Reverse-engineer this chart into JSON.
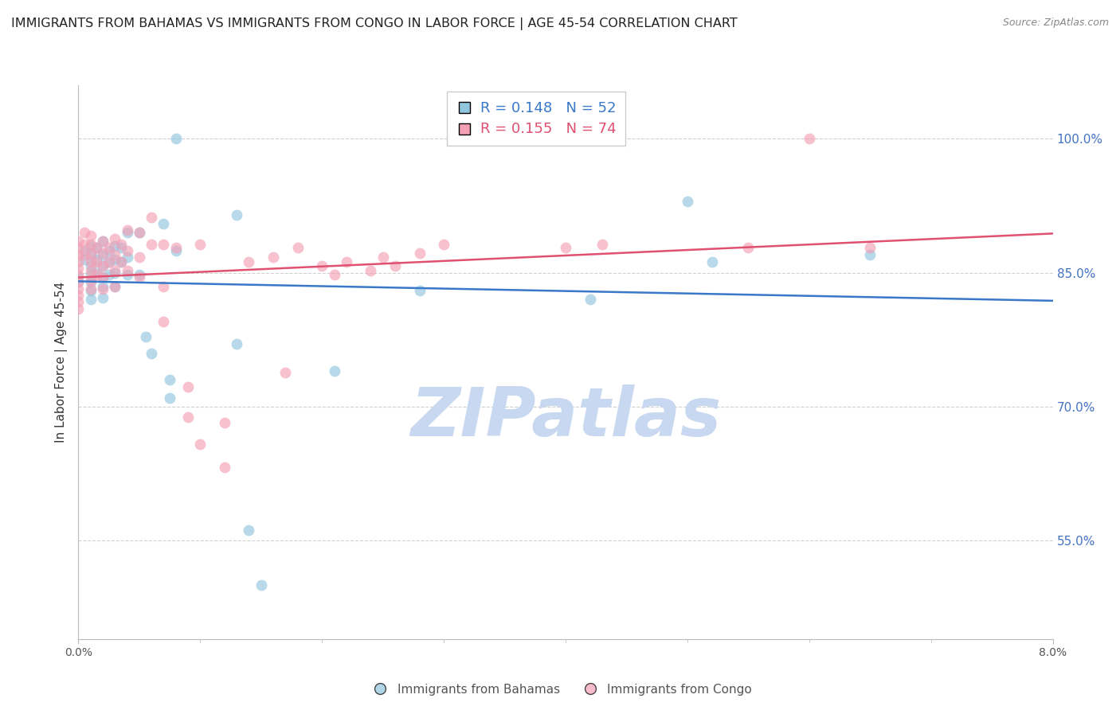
{
  "title": "IMMIGRANTS FROM BAHAMAS VS IMMIGRANTS FROM CONGO IN LABOR FORCE | AGE 45-54 CORRELATION CHART",
  "source": "Source: ZipAtlas.com",
  "ylabel": "In Labor Force | Age 45-54",
  "yticks": [
    0.55,
    0.7,
    0.85,
    1.0
  ],
  "ytick_labels": [
    "55.0%",
    "70.0%",
    "85.0%",
    "100.0%"
  ],
  "xlim": [
    0.0,
    0.08
  ],
  "ylim": [
    0.44,
    1.06
  ],
  "bahamas_color": "#92c5de",
  "congo_color": "#f4a0b5",
  "trend_bahamas_color": "#3a78c9",
  "trend_congo_color": "#e05070",
  "bahamas_scatter": [
    [
      0.0,
      0.845
    ],
    [
      0.0,
      0.84
    ],
    [
      0.0005,
      0.875
    ],
    [
      0.0005,
      0.865
    ],
    [
      0.001,
      0.88
    ],
    [
      0.001,
      0.87
    ],
    [
      0.001,
      0.858
    ],
    [
      0.001,
      0.848
    ],
    [
      0.001,
      0.84
    ],
    [
      0.001,
      0.83
    ],
    [
      0.001,
      0.82
    ],
    [
      0.0015,
      0.878
    ],
    [
      0.0015,
      0.865
    ],
    [
      0.0015,
      0.85
    ],
    [
      0.002,
      0.885
    ],
    [
      0.002,
      0.87
    ],
    [
      0.002,
      0.858
    ],
    [
      0.002,
      0.845
    ],
    [
      0.002,
      0.835
    ],
    [
      0.002,
      0.822
    ],
    [
      0.0025,
      0.875
    ],
    [
      0.0025,
      0.862
    ],
    [
      0.0025,
      0.848
    ],
    [
      0.003,
      0.88
    ],
    [
      0.003,
      0.865
    ],
    [
      0.003,
      0.85
    ],
    [
      0.003,
      0.835
    ],
    [
      0.0035,
      0.878
    ],
    [
      0.0035,
      0.862
    ],
    [
      0.004,
      0.895
    ],
    [
      0.004,
      0.868
    ],
    [
      0.004,
      0.848
    ],
    [
      0.005,
      0.895
    ],
    [
      0.005,
      0.848
    ],
    [
      0.0055,
      0.778
    ],
    [
      0.006,
      0.76
    ],
    [
      0.007,
      0.905
    ],
    [
      0.0075,
      0.73
    ],
    [
      0.0075,
      0.71
    ],
    [
      0.008,
      1.0
    ],
    [
      0.008,
      0.875
    ],
    [
      0.013,
      0.915
    ],
    [
      0.013,
      0.77
    ],
    [
      0.014,
      0.562
    ],
    [
      0.015,
      0.5
    ],
    [
      0.021,
      0.74
    ],
    [
      0.028,
      0.83
    ],
    [
      0.042,
      0.82
    ],
    [
      0.05,
      0.93
    ],
    [
      0.052,
      0.862
    ],
    [
      0.065,
      0.87
    ]
  ],
  "congo_scatter": [
    [
      0.0,
      0.885
    ],
    [
      0.0,
      0.878
    ],
    [
      0.0,
      0.87
    ],
    [
      0.0,
      0.862
    ],
    [
      0.0,
      0.855
    ],
    [
      0.0,
      0.848
    ],
    [
      0.0,
      0.84
    ],
    [
      0.0,
      0.832
    ],
    [
      0.0,
      0.825
    ],
    [
      0.0,
      0.818
    ],
    [
      0.0,
      0.81
    ],
    [
      0.0005,
      0.895
    ],
    [
      0.0005,
      0.882
    ],
    [
      0.0005,
      0.87
    ],
    [
      0.001,
      0.892
    ],
    [
      0.001,
      0.882
    ],
    [
      0.001,
      0.872
    ],
    [
      0.001,
      0.862
    ],
    [
      0.001,
      0.852
    ],
    [
      0.001,
      0.842
    ],
    [
      0.001,
      0.832
    ],
    [
      0.0015,
      0.878
    ],
    [
      0.0015,
      0.862
    ],
    [
      0.0015,
      0.848
    ],
    [
      0.002,
      0.885
    ],
    [
      0.002,
      0.872
    ],
    [
      0.002,
      0.858
    ],
    [
      0.002,
      0.845
    ],
    [
      0.002,
      0.832
    ],
    [
      0.0025,
      0.878
    ],
    [
      0.0025,
      0.862
    ],
    [
      0.003,
      0.888
    ],
    [
      0.003,
      0.87
    ],
    [
      0.003,
      0.852
    ],
    [
      0.003,
      0.835
    ],
    [
      0.0035,
      0.882
    ],
    [
      0.0035,
      0.862
    ],
    [
      0.004,
      0.898
    ],
    [
      0.004,
      0.875
    ],
    [
      0.004,
      0.852
    ],
    [
      0.005,
      0.895
    ],
    [
      0.005,
      0.868
    ],
    [
      0.005,
      0.845
    ],
    [
      0.006,
      0.912
    ],
    [
      0.006,
      0.882
    ],
    [
      0.007,
      0.882
    ],
    [
      0.007,
      0.835
    ],
    [
      0.007,
      0.795
    ],
    [
      0.008,
      0.878
    ],
    [
      0.009,
      0.722
    ],
    [
      0.009,
      0.688
    ],
    [
      0.01,
      0.882
    ],
    [
      0.01,
      0.658
    ],
    [
      0.012,
      0.682
    ],
    [
      0.012,
      0.632
    ],
    [
      0.014,
      0.862
    ],
    [
      0.016,
      0.868
    ],
    [
      0.017,
      0.738
    ],
    [
      0.018,
      0.878
    ],
    [
      0.02,
      0.858
    ],
    [
      0.021,
      0.848
    ],
    [
      0.022,
      0.862
    ],
    [
      0.024,
      0.852
    ],
    [
      0.025,
      0.868
    ],
    [
      0.026,
      0.858
    ],
    [
      0.028,
      0.872
    ],
    [
      0.03,
      0.882
    ],
    [
      0.04,
      0.878
    ],
    [
      0.043,
      0.882
    ],
    [
      0.055,
      0.878
    ],
    [
      0.06,
      1.0
    ],
    [
      0.065,
      0.878
    ]
  ],
  "watermark": "ZIPatlas",
  "watermark_color": "#c8d8f0",
  "legend_bahamas_label": "Immigrants from Bahamas",
  "legend_congo_label": "Immigrants from Congo",
  "background_color": "#ffffff",
  "grid_color": "#d0d0d0",
  "axis_color": "#bbbbbb",
  "right_yaxis_color": "#4472c4",
  "title_fontsize": 11.5,
  "source_fontsize": 9
}
